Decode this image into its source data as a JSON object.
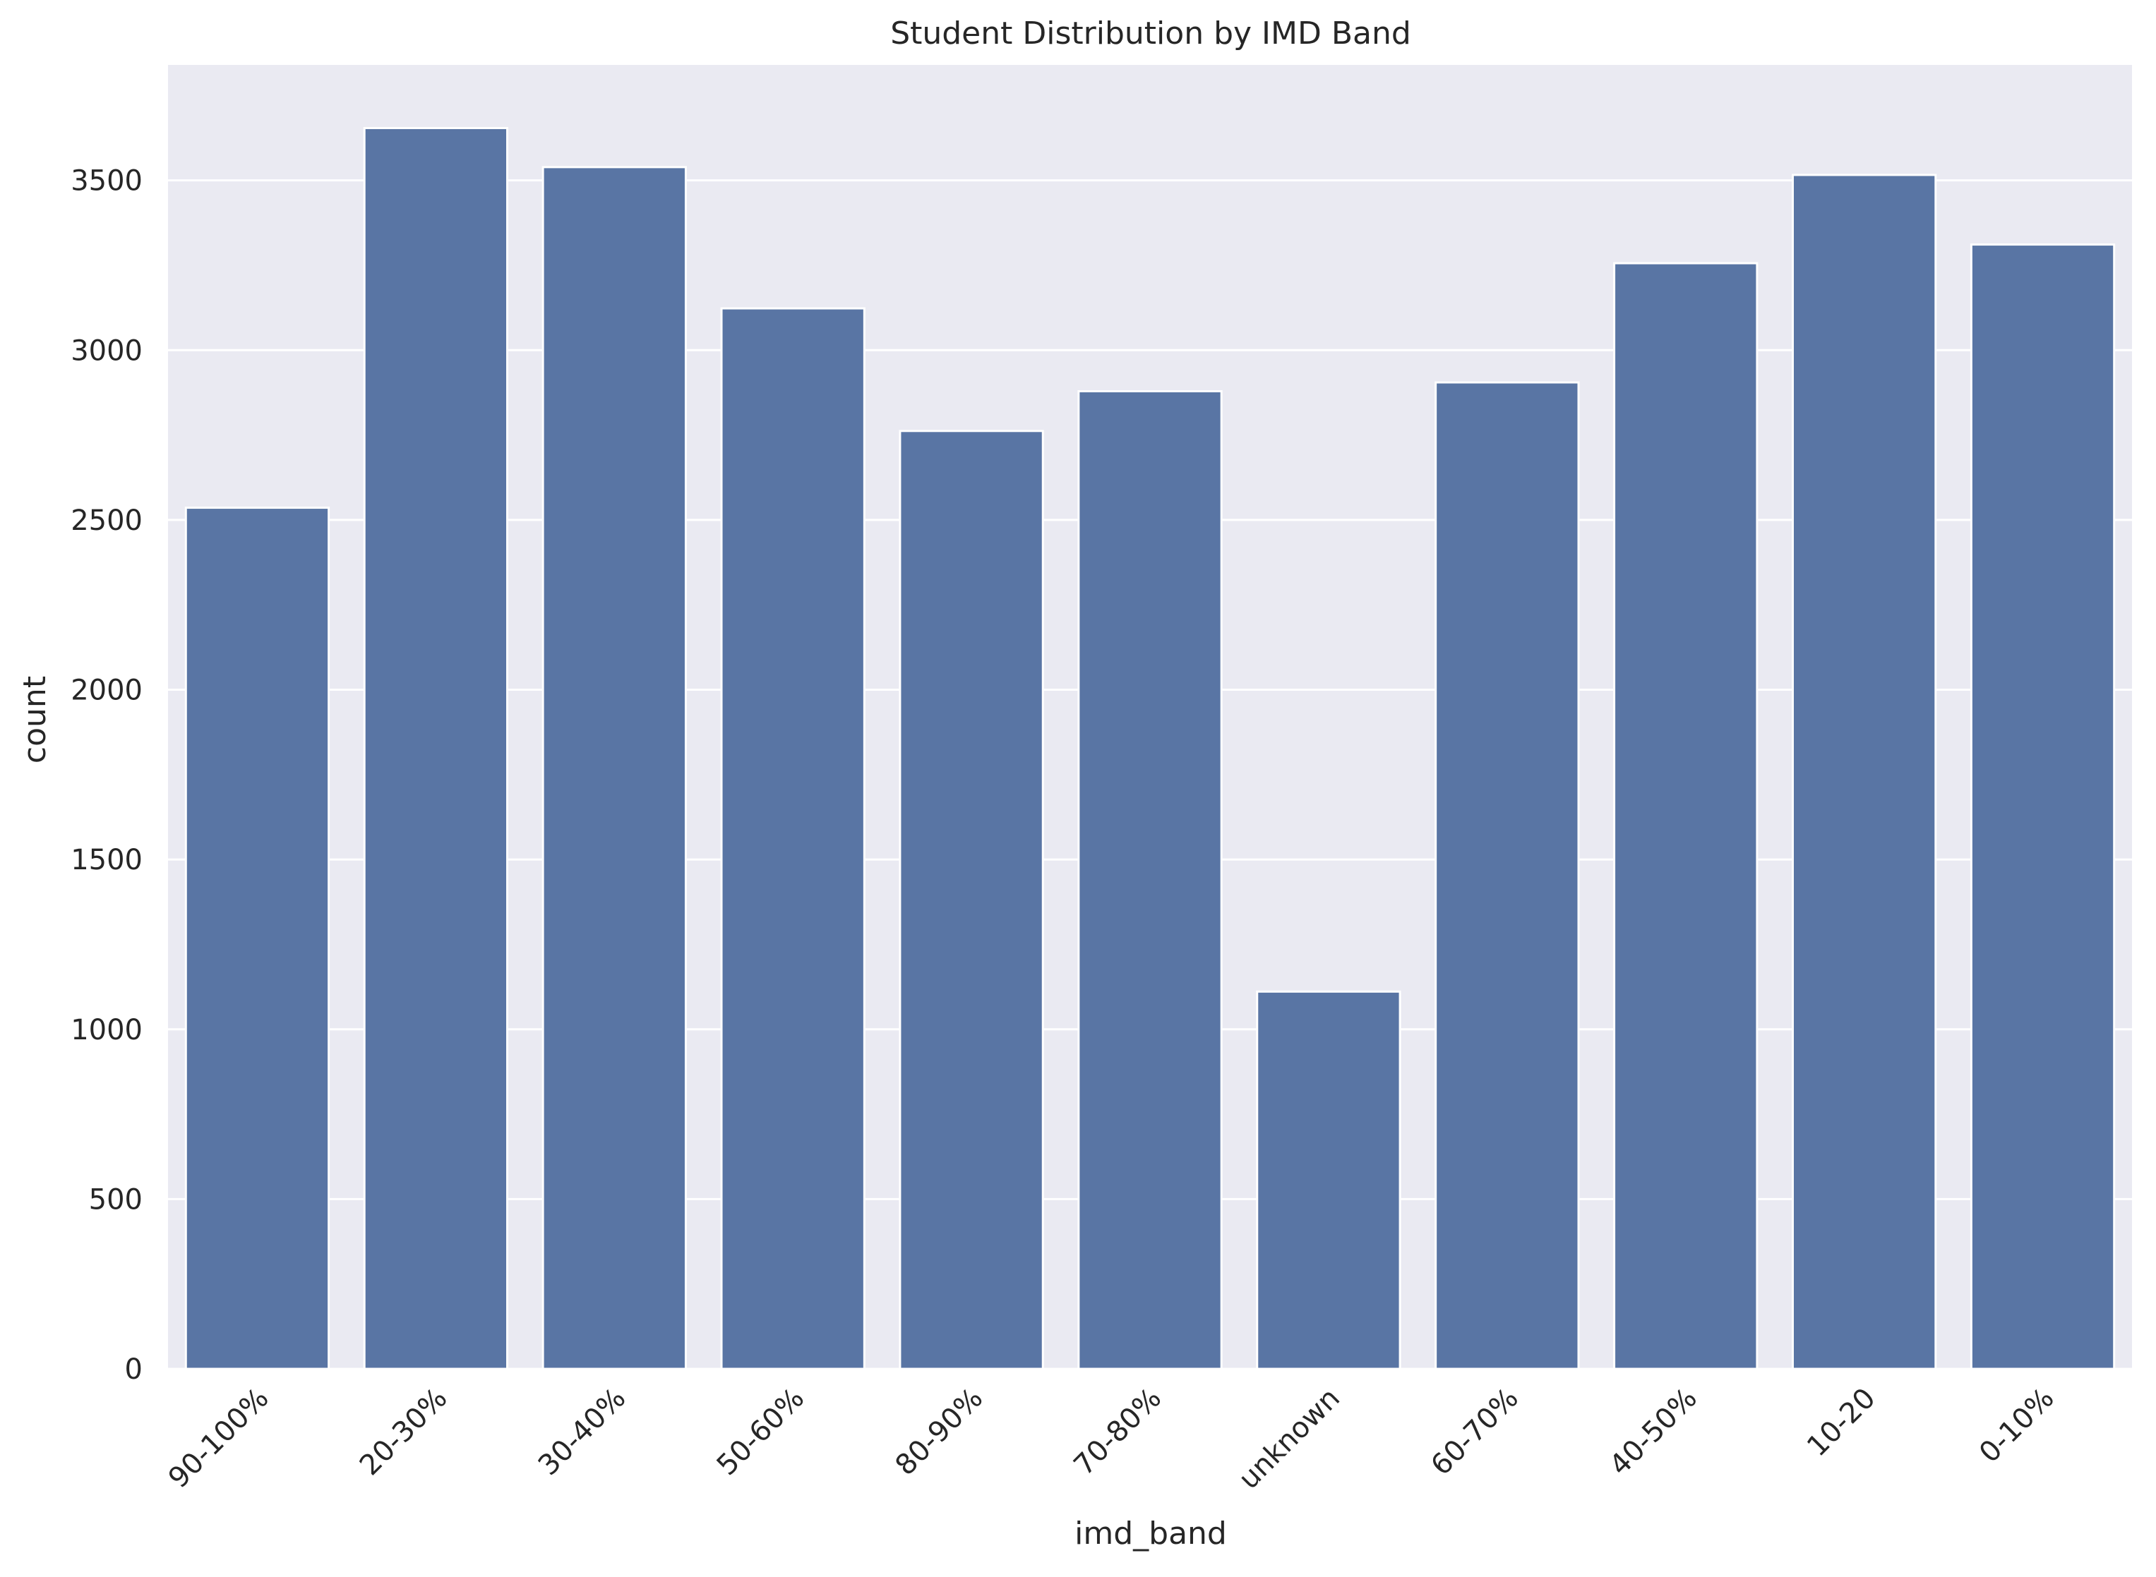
{
  "chart_data": {
    "type": "bar",
    "title": "Student Distribution by IMD Band",
    "xlabel": "imd_band",
    "ylabel": "count",
    "categories": [
      "90-100%",
      "20-30%",
      "30-40%",
      "50-60%",
      "80-90%",
      "70-80%",
      "unknown",
      "60-70%",
      "40-50%",
      "10-20",
      "0-10%"
    ],
    "values": [
      2536,
      3654,
      3539,
      3123,
      2762,
      2879,
      1111,
      2905,
      3256,
      3516,
      3311
    ],
    "ylim": [
      0,
      3840
    ],
    "yticks": [
      0,
      500,
      1000,
      1500,
      2000,
      2500,
      3000,
      3500
    ],
    "grid": true,
    "colors": {
      "bar": "#5975a4",
      "plot_background": "#eaeaf2",
      "grid": "#ffffff",
      "text": "#262626"
    }
  }
}
